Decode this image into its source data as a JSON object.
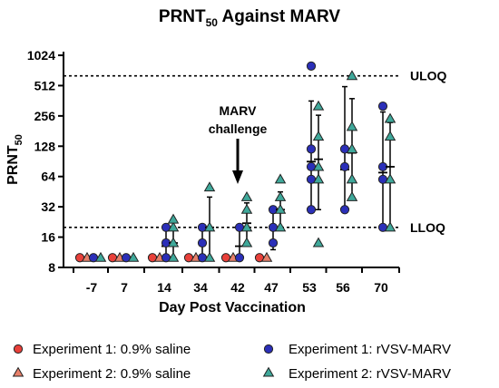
{
  "chart_data": {
    "type": "scatter",
    "title_main": "PRNT",
    "title_sub": "50",
    "title_rest": " Against MARV",
    "ylabel_main": "PRNT",
    "ylabel_sub": "50",
    "xlabel": "Day Post Vaccination",
    "yscale": "log2",
    "ylim": [
      8,
      1024
    ],
    "yticks": [
      8,
      16,
      32,
      64,
      128,
      256,
      512,
      1024
    ],
    "categories": [
      "-7",
      "7",
      "14",
      "34",
      "42",
      "47",
      "53",
      "56",
      "70"
    ],
    "reference_lines": [
      {
        "label": "ULOQ",
        "value": 640
      },
      {
        "label": "LLOQ",
        "value": 20
      }
    ],
    "annotation": {
      "lines": [
        "MARV",
        "challenge"
      ],
      "category": "42"
    },
    "series": [
      {
        "name": "Experiment 1: 0.9% saline",
        "marker": "circle",
        "color": "#e8403a",
        "values": {
          "-7": [
            10
          ],
          "7": [
            10
          ],
          "14": [
            10
          ],
          "34": [
            10
          ],
          "42": [
            10
          ],
          "47": [
            10
          ]
        }
      },
      {
        "name": "Experiment 2: 0.9% saline",
        "marker": "triangle",
        "color": "#e8806a",
        "values": {
          "-7": [
            10
          ],
          "7": [
            10
          ],
          "14": [
            10
          ],
          "34": [
            10
          ],
          "42": [
            10
          ],
          "47": [
            10
          ]
        }
      },
      {
        "name": "Experiment 1: rVSV-MARV",
        "marker": "circle",
        "color": "#2b2fb8",
        "values": {
          "-7": [
            10
          ],
          "7": [
            10
          ],
          "14": [
            10,
            14,
            20
          ],
          "34": [
            10,
            14,
            20
          ],
          "42": [
            10,
            20
          ],
          "47": [
            14,
            20,
            30
          ],
          "53": [
            30,
            60,
            80,
            120,
            800
          ],
          "56": [
            30,
            80,
            120
          ],
          "70": [
            20,
            60,
            80,
            320
          ]
        },
        "mean": {
          "14": 13,
          "34": 14,
          "42": 13,
          "47": 20,
          "53": 90,
          "56": 75,
          "70": 70
        },
        "err": {
          "14": [
            10,
            20
          ],
          "34": [
            10,
            20
          ],
          "42": [
            10,
            20
          ],
          "47": [
            12,
            30
          ],
          "53": [
            30,
            360
          ],
          "56": [
            30,
            500
          ],
          "70": [
            20,
            280
          ]
        }
      },
      {
        "name": "Experiment 2: rVSV-MARV",
        "marker": "triangle",
        "color": "#3fa89a",
        "values": {
          "-7": [
            10
          ],
          "7": [
            10
          ],
          "14": [
            10,
            14,
            20,
            24
          ],
          "34": [
            10,
            20,
            50
          ],
          "42": [
            14,
            20,
            30,
            40
          ],
          "47": [
            20,
            30,
            40,
            60
          ],
          "53": [
            14,
            60,
            80,
            160,
            320
          ],
          "56": [
            40,
            60,
            120,
            200,
            640
          ],
          "70": [
            20,
            60,
            160,
            240
          ]
        },
        "mean": {
          "14": 14,
          "34": 20,
          "42": 22,
          "47": 30,
          "53": 95,
          "56": 110,
          "70": 80
        },
        "err": {
          "14": [
            10,
            20
          ],
          "34": [
            10,
            40
          ],
          "42": [
            14,
            35
          ],
          "47": [
            20,
            45
          ],
          "53": [
            30,
            260
          ],
          "56": [
            40,
            380
          ],
          "70": [
            20,
            220
          ]
        }
      }
    ]
  }
}
